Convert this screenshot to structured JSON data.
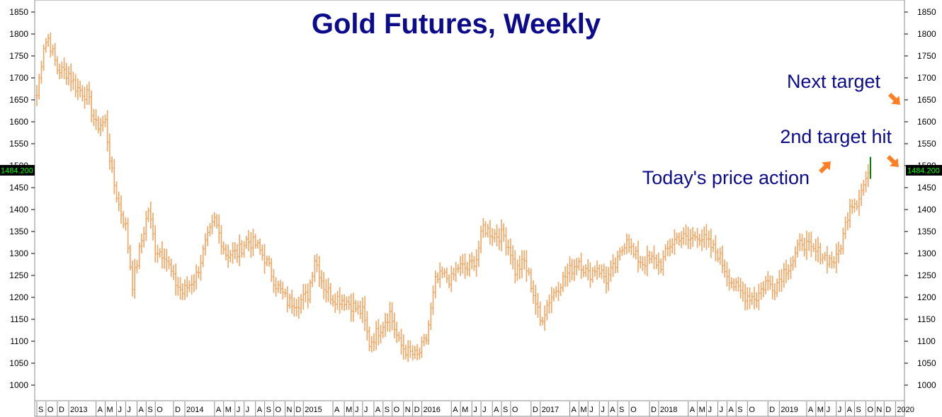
{
  "colors": {
    "bars": "#f4a460",
    "title": "#0b0b8c",
    "arrow": "#ff7f24",
    "price_box_bg": "#000000",
    "price_box_text": "#00ff00",
    "today_bar": "#008000",
    "grid": "#b0b0b0"
  },
  "chart_data": {
    "type": "ohlc-bars",
    "title": "Gold Futures, Weekly",
    "xlabel": "",
    "ylabel": "",
    "ylim": [
      1000,
      1850
    ],
    "y_ticks": [
      1000,
      1050,
      1100,
      1150,
      1200,
      1250,
      1300,
      1350,
      1400,
      1450,
      1500,
      1550,
      1600,
      1650,
      1700,
      1750,
      1800,
      1850
    ],
    "last_price_label": "1484.200",
    "last_price": 1484.2,
    "x_axis_labels": [
      "S",
      "O",
      "D",
      "2013",
      "A",
      "M",
      "J",
      "J",
      "A",
      "S",
      "O",
      "D",
      "2014",
      "A",
      "M",
      "J",
      "J",
      "A",
      "S",
      "O",
      "N",
      "D",
      "2015",
      "A",
      "M",
      "J",
      "J",
      "A",
      "S",
      "O",
      "N",
      "D",
      "2016",
      "A",
      "M",
      "J",
      "J",
      "A",
      "S",
      "O",
      "D",
      "2017",
      "A",
      "M",
      "J",
      "J",
      "A",
      "S",
      "O",
      "D",
      "2018",
      "A",
      "M",
      "J",
      "J",
      "A",
      "S",
      "O",
      "D",
      "2019",
      "A",
      "M",
      "J",
      "J",
      "A",
      "S",
      "O",
      "N",
      "D",
      "2020"
    ],
    "x_axis_weeks": [
      0,
      4,
      9,
      14,
      26,
      30,
      35,
      39,
      44,
      48,
      52,
      60,
      65,
      78,
      82,
      87,
      91,
      96,
      100,
      104,
      109,
      113,
      117,
      130,
      135,
      139,
      143,
      148,
      152,
      156,
      161,
      165,
      169,
      182,
      186,
      191,
      195,
      200,
      204,
      208,
      217,
      221,
      234,
      238,
      242,
      247,
      251,
      255,
      260,
      269,
      273,
      286,
      290,
      294,
      299,
      303,
      307,
      312,
      321,
      326,
      338,
      342,
      346,
      351,
      355,
      359,
      364,
      368,
      372,
      377
    ],
    "series_anchor_points": [
      {
        "week": 0,
        "close": 1660
      },
      {
        "week": 3,
        "close": 1775
      },
      {
        "week": 5,
        "close": 1790
      },
      {
        "week": 9,
        "close": 1720
      },
      {
        "week": 14,
        "close": 1710
      },
      {
        "week": 17,
        "close": 1680
      },
      {
        "week": 22,
        "close": 1660
      },
      {
        "week": 26,
        "close": 1590
      },
      {
        "week": 30,
        "close": 1600
      },
      {
        "week": 33,
        "close": 1480
      },
      {
        "week": 36,
        "close": 1410
      },
      {
        "week": 39,
        "close": 1360
      },
      {
        "week": 42,
        "close": 1230
      },
      {
        "week": 46,
        "close": 1330
      },
      {
        "week": 49,
        "close": 1400
      },
      {
        "week": 52,
        "close": 1310
      },
      {
        "week": 56,
        "close": 1300
      },
      {
        "week": 60,
        "close": 1240
      },
      {
        "week": 64,
        "close": 1210
      },
      {
        "week": 70,
        "close": 1250
      },
      {
        "week": 74,
        "close": 1320
      },
      {
        "week": 78,
        "close": 1375
      },
      {
        "week": 83,
        "close": 1300
      },
      {
        "week": 88,
        "close": 1300
      },
      {
        "week": 92,
        "close": 1330
      },
      {
        "week": 96,
        "close": 1320
      },
      {
        "week": 100,
        "close": 1290
      },
      {
        "week": 105,
        "close": 1230
      },
      {
        "week": 110,
        "close": 1190
      },
      {
        "week": 115,
        "close": 1190
      },
      {
        "week": 119,
        "close": 1205
      },
      {
        "week": 122,
        "close": 1290
      },
      {
        "week": 126,
        "close": 1225
      },
      {
        "week": 130,
        "close": 1200
      },
      {
        "week": 135,
        "close": 1195
      },
      {
        "week": 140,
        "close": 1175
      },
      {
        "week": 143,
        "close": 1165
      },
      {
        "week": 146,
        "close": 1095
      },
      {
        "week": 150,
        "close": 1125
      },
      {
        "week": 155,
        "close": 1165
      },
      {
        "week": 159,
        "close": 1095
      },
      {
        "week": 163,
        "close": 1075
      },
      {
        "week": 167,
        "close": 1065
      },
      {
        "week": 171,
        "close": 1105
      },
      {
        "week": 175,
        "close": 1235
      },
      {
        "week": 178,
        "close": 1250
      },
      {
        "week": 182,
        "close": 1240
      },
      {
        "week": 185,
        "close": 1270
      },
      {
        "week": 189,
        "close": 1265
      },
      {
        "week": 193,
        "close": 1290
      },
      {
        "week": 196,
        "close": 1360
      },
      {
        "week": 200,
        "close": 1345
      },
      {
        "week": 205,
        "close": 1340
      },
      {
        "week": 208,
        "close": 1305
      },
      {
        "week": 210,
        "close": 1260
      },
      {
        "week": 214,
        "close": 1280
      },
      {
        "week": 217,
        "close": 1230
      },
      {
        "week": 221,
        "close": 1145
      },
      {
        "week": 225,
        "close": 1195
      },
      {
        "week": 230,
        "close": 1235
      },
      {
        "week": 234,
        "close": 1260
      },
      {
        "week": 238,
        "close": 1285
      },
      {
        "week": 242,
        "close": 1250
      },
      {
        "week": 246,
        "close": 1270
      },
      {
        "week": 250,
        "close": 1240
      },
      {
        "week": 255,
        "close": 1280
      },
      {
        "week": 259,
        "close": 1340
      },
      {
        "week": 262,
        "close": 1295
      },
      {
        "week": 266,
        "close": 1280
      },
      {
        "week": 270,
        "close": 1285
      },
      {
        "week": 274,
        "close": 1275
      },
      {
        "week": 278,
        "close": 1320
      },
      {
        "week": 282,
        "close": 1340
      },
      {
        "week": 286,
        "close": 1330
      },
      {
        "week": 290,
        "close": 1345
      },
      {
        "week": 294,
        "close": 1325
      },
      {
        "week": 299,
        "close": 1300
      },
      {
        "week": 303,
        "close": 1255
      },
      {
        "week": 307,
        "close": 1220
      },
      {
        "week": 311,
        "close": 1205
      },
      {
        "week": 316,
        "close": 1200
      },
      {
        "week": 320,
        "close": 1235
      },
      {
        "week": 324,
        "close": 1225
      },
      {
        "week": 328,
        "close": 1260
      },
      {
        "week": 332,
        "close": 1285
      },
      {
        "week": 336,
        "close": 1330
      },
      {
        "week": 340,
        "close": 1305
      },
      {
        "week": 344,
        "close": 1300
      },
      {
        "week": 348,
        "close": 1285
      },
      {
        "week": 351,
        "close": 1285
      },
      {
        "week": 354,
        "close": 1340
      },
      {
        "week": 357,
        "close": 1415
      },
      {
        "week": 360,
        "close": 1420
      },
      {
        "week": 363,
        "close": 1455
      },
      {
        "week": 365,
        "close": 1484.2
      }
    ],
    "today_bar": {
      "week": 366,
      "low": 1470,
      "high": 1520
    }
  },
  "annotations": {
    "next_target": "Next target",
    "second_target": "2nd target hit",
    "today": "Today's price action"
  }
}
